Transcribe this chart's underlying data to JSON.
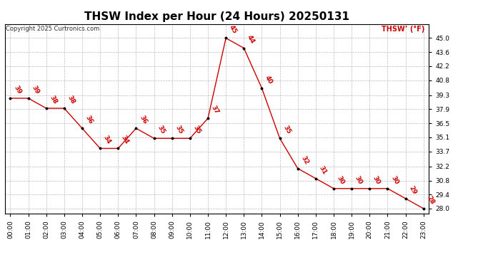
{
  "title": "THSW Index per Hour (24 Hours) 20250131",
  "copyright": "Copyright 2025 Curtronics.com",
  "legend_label": "THSW’ (°F)",
  "hours": [
    "00:00",
    "01:00",
    "02:00",
    "03:00",
    "04:00",
    "05:00",
    "06:00",
    "07:00",
    "08:00",
    "09:00",
    "10:00",
    "11:00",
    "12:00",
    "13:00",
    "14:00",
    "15:00",
    "16:00",
    "17:00",
    "18:00",
    "19:00",
    "20:00",
    "21:00",
    "22:00",
    "23:00"
  ],
  "values": [
    39,
    39,
    38,
    38,
    36,
    34,
    34,
    36,
    35,
    35,
    35,
    37,
    45,
    44,
    40,
    35,
    32,
    31,
    30,
    30,
    30,
    30,
    29,
    28
  ],
  "line_color": "#cc0000",
  "dot_color": "#000000",
  "label_color": "#cc0000",
  "grid_color": "#aaaaaa",
  "ylim_min": 27.5,
  "ylim_max": 46.4,
  "yticks": [
    28.0,
    29.4,
    30.8,
    32.2,
    33.7,
    35.1,
    36.5,
    37.9,
    39.3,
    40.8,
    42.2,
    43.6,
    45.0
  ],
  "background_color": "#ffffff",
  "title_fontsize": 11,
  "label_fontsize": 6.5,
  "tick_fontsize": 6.5,
  "copyright_fontsize": 6,
  "legend_fontsize": 7
}
